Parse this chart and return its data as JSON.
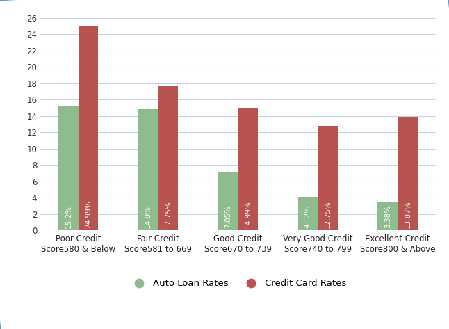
{
  "categories": [
    "Poor Credit\nScore580 & Below",
    "Fair Credit\nScore581 to 669",
    "Good Credit\nScore670 to 739",
    "Very Good Credit\nScore740 to 799",
    "Excellent Credit\nScore800 & Above"
  ],
  "auto_loan_rates": [
    15.2,
    14.8,
    7.05,
    4.12,
    3.38
  ],
  "credit_card_rates": [
    24.99,
    17.75,
    14.99,
    12.75,
    13.87
  ],
  "auto_loan_labels": [
    "15.2%",
    "14.8%",
    "7.05%",
    "4.12%",
    "3.38%"
  ],
  "credit_card_labels": [
    "24.99%",
    "17.75%",
    "14.99%",
    "12.75%",
    "13.87%"
  ],
  "auto_loan_color": "#8fbc8f",
  "credit_card_color": "#b85450",
  "background_color": "#ffffff",
  "border_color": "#5b9bd5",
  "grid_color": "#c8d4e0",
  "text_color": "#ffffff",
  "ylim": [
    0,
    27
  ],
  "yticks": [
    0,
    2,
    4,
    6,
    8,
    10,
    12,
    14,
    16,
    18,
    20,
    22,
    24,
    26
  ],
  "bar_width": 0.25,
  "legend_auto": "Auto Loan Rates",
  "legend_card": "Credit Card Rates",
  "label_fontsize": 7.5,
  "tick_fontsize": 8.5,
  "legend_fontsize": 9.5
}
